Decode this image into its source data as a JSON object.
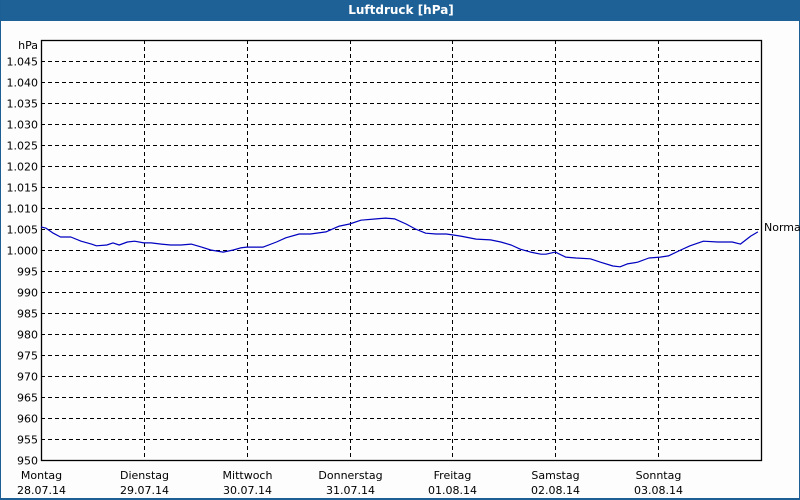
{
  "window": {
    "title": "Luftdruck [hPa]",
    "title_bar_color": "#1d6196"
  },
  "chart_data": {
    "type": "line",
    "title": "Luftdruck [hPa]",
    "xlabel": "",
    "ylabel": "hPa",
    "ylim": [
      950,
      1050
    ],
    "grid": true,
    "y_ticks": [
      "950",
      "955",
      "960",
      "965",
      "970",
      "975",
      "980",
      "985",
      "990",
      "995",
      "1.000",
      "1.005",
      "1.010",
      "1.015",
      "1.020",
      "1.025",
      "1.030",
      "1.035",
      "1.040",
      "1.045"
    ],
    "x_ticks": [
      {
        "day": "Montag",
        "date": "28.07.14"
      },
      {
        "day": "Dienstag",
        "date": "29.07.14"
      },
      {
        "day": "Mittwoch",
        "date": "30.07.14"
      },
      {
        "day": "Donnerstag",
        "date": "31.07.14"
      },
      {
        "day": "Freitag",
        "date": "01.08.14"
      },
      {
        "day": "Samstag",
        "date": "02.08.14"
      },
      {
        "day": "Sonntag",
        "date": "03.08.14"
      }
    ],
    "annotation": {
      "label": "Normal",
      "value": 1005.5
    },
    "line_color": "#0000c0",
    "series": [
      {
        "name": "Luftdruck",
        "x_days": [
          0.0,
          0.05,
          0.12,
          0.19,
          0.29,
          0.39,
          0.49,
          0.54,
          0.64,
          0.7,
          0.76,
          0.84,
          0.91,
          1.0,
          1.07,
          1.17,
          1.26,
          1.36,
          1.46,
          1.56,
          1.65,
          1.77,
          1.87,
          1.94,
          2.0,
          2.04,
          2.16,
          2.29,
          2.38,
          2.51,
          2.62,
          2.77,
          2.9,
          3.0,
          3.11,
          3.26,
          3.35,
          3.44,
          3.55,
          3.64,
          3.74,
          3.84,
          3.94,
          4.0,
          4.08,
          4.23,
          4.37,
          4.47,
          4.57,
          4.66,
          4.76,
          4.86,
          4.91,
          5.0,
          5.1,
          5.2,
          5.34,
          5.44,
          5.56,
          5.63,
          5.7,
          5.8,
          5.91,
          6.02,
          6.1,
          6.22,
          6.31,
          6.44,
          6.58,
          6.72,
          6.8,
          6.9,
          6.97
        ],
        "values": [
          1005.5,
          1005.2,
          1004.0,
          1003.1,
          1003.1,
          1002.1,
          1001.4,
          1001.0,
          1001.2,
          1001.7,
          1001.2,
          1001.9,
          1002.1,
          1001.7,
          1001.7,
          1001.4,
          1001.2,
          1001.2,
          1001.4,
          1000.7,
          1000.0,
          999.5,
          1000.0,
          1000.5,
          1000.7,
          1000.7,
          1000.7,
          1001.9,
          1002.9,
          1003.8,
          1003.8,
          1004.3,
          1005.7,
          1006.2,
          1007.1,
          1007.4,
          1007.6,
          1007.4,
          1006.2,
          1005.0,
          1004.0,
          1003.8,
          1003.8,
          1003.6,
          1003.3,
          1002.6,
          1002.4,
          1001.9,
          1001.2,
          1000.2,
          999.5,
          999.0,
          999.0,
          999.5,
          998.3,
          998.1,
          997.9,
          997.1,
          996.2,
          996.0,
          996.7,
          997.1,
          998.1,
          998.3,
          998.6,
          1000.0,
          1001.0,
          1002.1,
          1001.9,
          1001.9,
          1001.4,
          1003.3,
          1004.3
        ]
      }
    ]
  }
}
